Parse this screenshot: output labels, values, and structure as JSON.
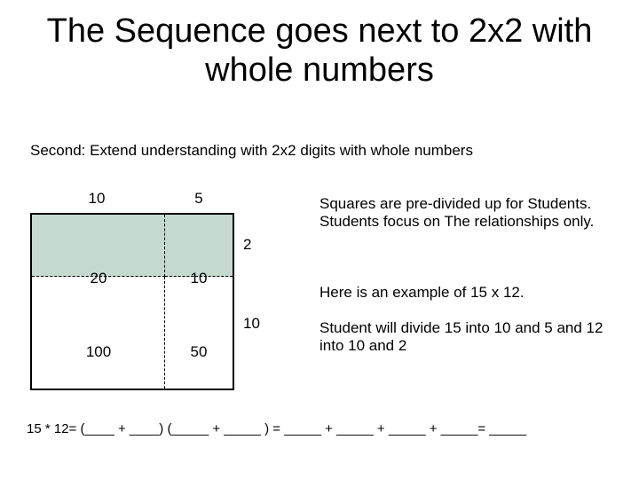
{
  "title": "The Sequence goes next to 2x2 with whole numbers",
  "subhead": "Second:  Extend understanding with 2x2 digits with whole numbers",
  "diagram": {
    "top_labels": [
      "10",
      "5"
    ],
    "right_labels": [
      "2",
      "10"
    ],
    "cells": {
      "a": "20",
      "b": "10",
      "c": "100",
      "d": "50"
    },
    "fill_color": "#c5d9d1",
    "border_color": "#000000"
  },
  "paragraphs": {
    "p1": "Squares are pre-divided up for Students.  Students focus on The relationships only.",
    "p2": "Here is an example of 15 x 12.",
    "p3": "Student will divide 15 into 10 and 5 and 12 into 10 and 2"
  },
  "equation": "15 * 12= (____ + ____) (_____ + _____ ) = _____ + _____  + _____ + _____= _____"
}
